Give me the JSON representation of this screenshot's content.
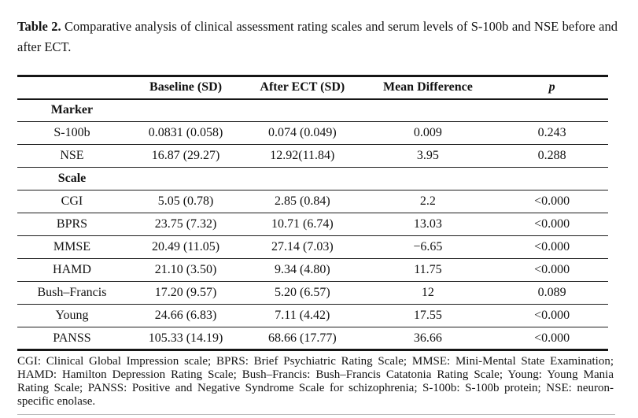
{
  "caption": {
    "label": "Table 2.",
    "text": "Comparative analysis of clinical assessment rating scales and serum levels of S-100b and NSE before and after ECT."
  },
  "table": {
    "columns": [
      "",
      "Baseline (SD)",
      "After ECT (SD)",
      "Mean Difference",
      "p"
    ],
    "rows": [
      {
        "label": "Marker",
        "section": true,
        "baseline": "",
        "after": "",
        "diff": "",
        "p": ""
      },
      {
        "label": "S-100b",
        "section": false,
        "baseline": "0.0831 (0.058)",
        "after": "0.074 (0.049)",
        "diff": "0.009",
        "p": "0.243"
      },
      {
        "label": "NSE",
        "section": false,
        "baseline": "16.87 (29.27)",
        "after": "12.92(11.84)",
        "diff": "3.95",
        "p": "0.288"
      },
      {
        "label": "Scale",
        "section": true,
        "baseline": "",
        "after": "",
        "diff": "",
        "p": ""
      },
      {
        "label": "CGI",
        "section": false,
        "baseline": "5.05 (0.78)",
        "after": "2.85 (0.84)",
        "diff": "2.2",
        "p": "<0.000"
      },
      {
        "label": "BPRS",
        "section": false,
        "baseline": "23.75 (7.32)",
        "after": "10.71 (6.74)",
        "diff": "13.03",
        "p": "<0.000"
      },
      {
        "label": "MMSE",
        "section": false,
        "baseline": "20.49 (11.05)",
        "after": "27.14 (7.03)",
        "diff": "−6.65",
        "p": "<0.000"
      },
      {
        "label": "HAMD",
        "section": false,
        "baseline": "21.10 (3.50)",
        "after": "9.34 (4.80)",
        "diff": "11.75",
        "p": "<0.000"
      },
      {
        "label": "Bush–Francis",
        "section": false,
        "baseline": "17.20 (9.57)",
        "after": "5.20 (6.57)",
        "diff": "12",
        "p": "0.089"
      },
      {
        "label": "Young",
        "section": false,
        "baseline": "24.66 (6.83)",
        "after": "7.11 (4.42)",
        "diff": "17.55",
        "p": "<0.000"
      },
      {
        "label": "PANSS",
        "section": false,
        "baseline": "105.33 (14.19)",
        "after": "68.66 (17.77)",
        "diff": "36.66",
        "p": "<0.000"
      }
    ]
  },
  "footnote": "CGI: Clinical Global Impression scale; BPRS: Brief Psychiatric Rating Scale; MMSE: Mini-Mental State Examination; HAMD: Hamilton Depression Rating Scale; Bush–Francis: Bush–Francis Catatonia Rating Scale; Young: Young Mania Rating Scale; PANSS: Positive and Negative Syndrome Scale for schizophrenia; S-100b: S-100b protein; NSE: neuron-specific enolase."
}
